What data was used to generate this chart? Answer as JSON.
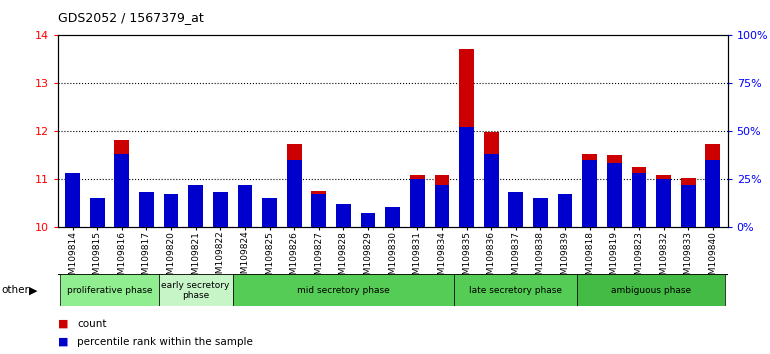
{
  "title": "GDS2052 / 1567379_at",
  "samples": [
    "GSM109814",
    "GSM109815",
    "GSM109816",
    "GSM109817",
    "GSM109820",
    "GSM109821",
    "GSM109822",
    "GSM109824",
    "GSM109825",
    "GSM109826",
    "GSM109827",
    "GSM109828",
    "GSM109829",
    "GSM109830",
    "GSM109831",
    "GSM109834",
    "GSM109835",
    "GSM109836",
    "GSM109837",
    "GSM109838",
    "GSM109839",
    "GSM109818",
    "GSM109819",
    "GSM109823",
    "GSM109832",
    "GSM109833",
    "GSM109840"
  ],
  "count_values": [
    10.92,
    10.35,
    11.82,
    10.68,
    10.65,
    10.87,
    10.73,
    10.68,
    10.46,
    11.72,
    10.75,
    10.35,
    10.07,
    10.12,
    11.07,
    11.08,
    13.72,
    11.98,
    10.73,
    10.45,
    10.48,
    11.52,
    11.5,
    11.25,
    11.08,
    11.02,
    11.72
  ],
  "pct_ranks": [
    28,
    15,
    38,
    18,
    17,
    22,
    18,
    22,
    15,
    35,
    17,
    12,
    7,
    10,
    25,
    22,
    52,
    38,
    18,
    15,
    17,
    35,
    33,
    28,
    25,
    22,
    35
  ],
  "phase_configs": [
    {
      "label": "proliferative phase",
      "start": 0,
      "end": 3,
      "color": "#90EE90"
    },
    {
      "label": "early secretory\nphase",
      "start": 4,
      "end": 6,
      "color": "#c8f5c8"
    },
    {
      "label": "mid secretory phase",
      "start": 7,
      "end": 15,
      "color": "#55CC55"
    },
    {
      "label": "late secretory phase",
      "start": 16,
      "end": 20,
      "color": "#55CC55"
    },
    {
      "label": "ambiguous phase",
      "start": 21,
      "end": 26,
      "color": "#44BB44"
    }
  ],
  "ylim_left": [
    10,
    14
  ],
  "yticks_left": [
    10,
    11,
    12,
    13,
    14
  ],
  "ylim_right": [
    0,
    100
  ],
  "yticks_right": [
    0,
    25,
    50,
    75,
    100
  ],
  "bar_color_count": "#CC0000",
  "bar_color_pct": "#0000CC",
  "bar_width": 0.6,
  "baseline": 10
}
